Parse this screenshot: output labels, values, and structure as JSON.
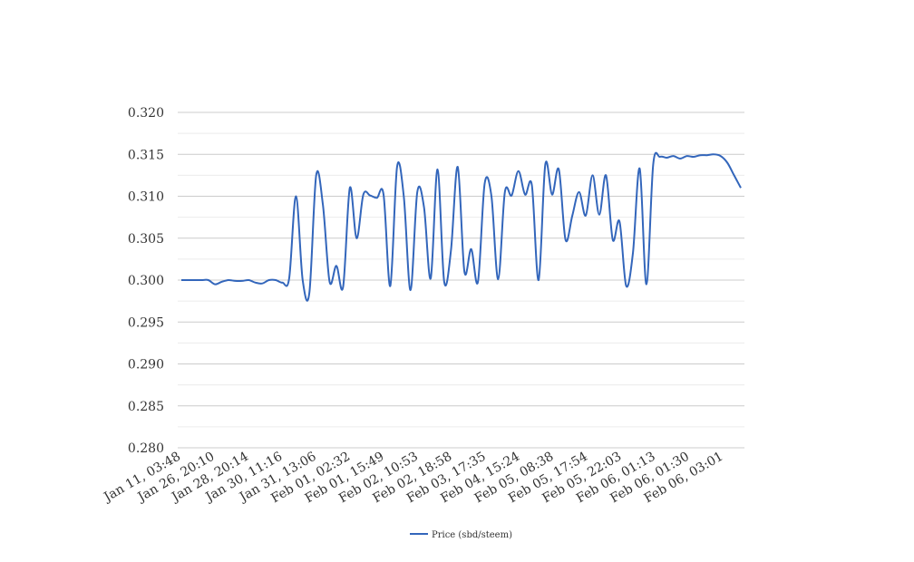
{
  "chart_data": {
    "type": "line",
    "ylim": [
      0.28,
      0.32
    ],
    "y_ticks": [
      "0.320",
      "0.315",
      "0.310",
      "0.305",
      "0.300",
      "0.295",
      "0.290",
      "0.285",
      "0.280"
    ],
    "y_tick_values": [
      0.32,
      0.315,
      0.31,
      0.305,
      0.3,
      0.295,
      0.29,
      0.285,
      0.28
    ],
    "x_tick_labels": [
      "Jan 11, 03:48",
      "Jan 26, 20:10",
      "Jan 28, 20:14",
      "Jan 30, 11:16",
      "Jan 31, 13:06",
      "Feb 01, 02:32",
      "Feb 01, 15:49",
      "Feb 02, 10:53",
      "Feb 02, 18:58",
      "Feb 03, 17:35",
      "Feb 04, 15:24",
      "Feb 05, 08:38",
      "Feb 05, 17:54",
      "Feb 05, 22:03",
      "Feb 06, 01:13",
      "Feb 06, 01:30",
      "Feb 06, 03:01"
    ],
    "grid": "horizontal",
    "legend_position": "bottom",
    "series": [
      {
        "name": "Price (sbd/steem)",
        "color": "#3366bb",
        "values": [
          0.3,
          0.3,
          0.3,
          0.3,
          0.3,
          0.2995,
          0.2998,
          0.3,
          0.2999,
          0.2999,
          0.3,
          0.2997,
          0.2996,
          0.3,
          0.3,
          0.2997,
          0.3002,
          0.31,
          0.3,
          0.2985,
          0.3125,
          0.309,
          0.2998,
          0.3017,
          0.2992,
          0.311,
          0.305,
          0.3102,
          0.3101,
          0.3098,
          0.3102,
          0.2993,
          0.3135,
          0.31,
          0.2988,
          0.3105,
          0.3087,
          0.3002,
          0.3132,
          0.2998,
          0.3035,
          0.3135,
          0.301,
          0.3037,
          0.2998,
          0.3115,
          0.31,
          0.3001,
          0.3105,
          0.3101,
          0.313,
          0.3102,
          0.3113,
          0.3,
          0.3138,
          0.3102,
          0.3132,
          0.3048,
          0.3077,
          0.3105,
          0.3077,
          0.3125,
          0.3078,
          0.3125,
          0.3048,
          0.307,
          0.2993,
          0.3033,
          0.3133,
          0.2995,
          0.3138,
          0.3147,
          0.3146,
          0.3148,
          0.3145,
          0.3148,
          0.3147,
          0.3149,
          0.3149,
          0.315,
          0.3148,
          0.314,
          0.3125,
          0.311
        ]
      }
    ]
  }
}
